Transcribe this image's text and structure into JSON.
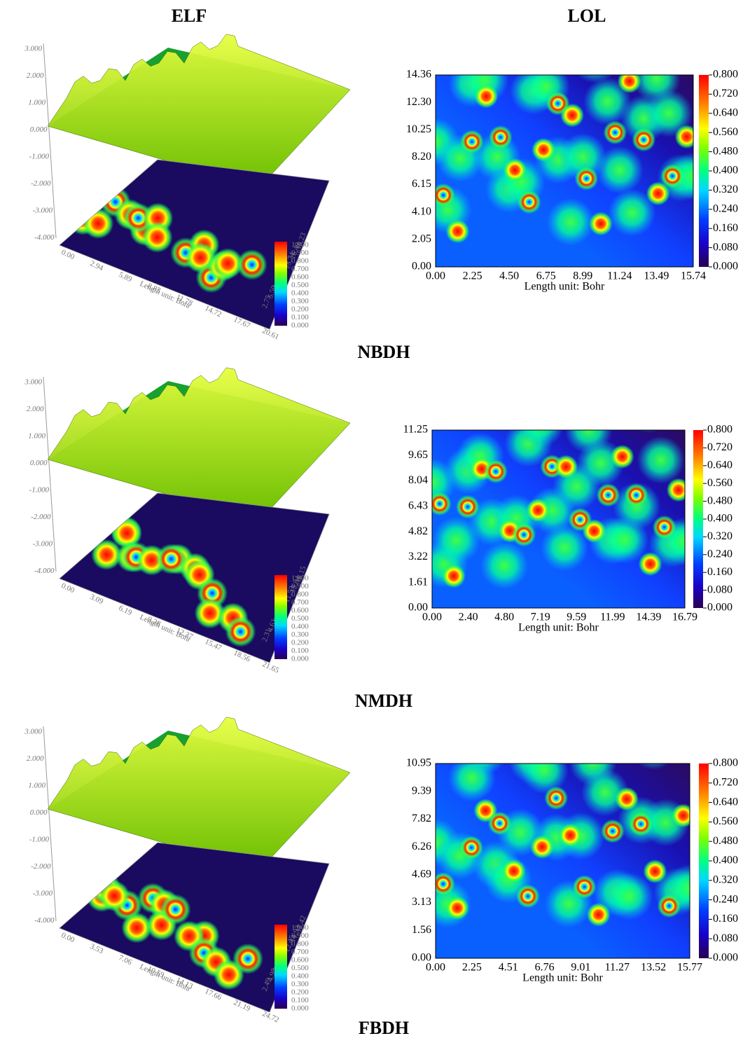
{
  "columns": {
    "elf": "ELF",
    "lol": "LOL"
  },
  "panels": [
    {
      "molecule": "NBDH",
      "elf": {
        "z_ticks": [
          "3.000",
          "2.000",
          "1.000",
          "0.000",
          "-1.000",
          "-2.000",
          "-3.000",
          "-4.000"
        ],
        "x_ticks": [
          "0.00",
          "2.94",
          "5.89",
          "8.83",
          "11.78",
          "14.72",
          "17.67",
          "20.61"
        ],
        "y_ticks": [
          "2.75",
          "5.50",
          "8.24",
          "10.99",
          "13.74",
          "16.49",
          "19.23"
        ],
        "axis_label": "Length unit: Bohr",
        "colorbar_ticks": [
          "1.000",
          "0.900",
          "0.800",
          "0.700",
          "0.600",
          "0.500",
          "0.400",
          "0.300",
          "0.200",
          "0.100",
          "0.000"
        ]
      },
      "lol": {
        "y_ticks": [
          "14.36",
          "12.30",
          "10.25",
          "8.20",
          "6.15",
          "4.10",
          "2.05",
          "0.00"
        ],
        "x_ticks": [
          "0.00",
          "2.25",
          "4.50",
          "6.75",
          "8.99",
          "11.24",
          "13.49",
          "15.74"
        ],
        "axis_label": "Length unit: Bohr",
        "colorbar_ticks": [
          "0.800",
          "0.720",
          "0.640",
          "0.560",
          "0.480",
          "0.400",
          "0.320",
          "0.240",
          "0.160",
          "0.080",
          "0.000"
        ]
      }
    },
    {
      "molecule": "NMDH",
      "elf": {
        "z_ticks": [
          "3.000",
          "2.000",
          "1.000",
          "0.000",
          "-1.000",
          "-2.000",
          "-3.000",
          "-4.000"
        ],
        "x_ticks": [
          "0.00",
          "3.09",
          "6.19",
          "9.28",
          "12.37",
          "15.47",
          "18.56",
          "21.65"
        ],
        "y_ticks": [
          "2.31",
          "4.61",
          "6.92",
          "9.23",
          "11.53",
          "13.84",
          "16.15"
        ],
        "axis_label": "Length unit: Bohr",
        "colorbar_ticks": [
          "1.000",
          "0.900",
          "0.800",
          "0.700",
          "0.600",
          "0.500",
          "0.400",
          "0.300",
          "0.200",
          "0.100",
          "0.000"
        ]
      },
      "lol": {
        "y_ticks": [
          "11.25",
          "9.65",
          "8.04",
          "6.43",
          "4.82",
          "3.22",
          "1.61",
          "0.00"
        ],
        "x_ticks": [
          "0.00",
          "2.40",
          "4.80",
          "7.19",
          "9.59",
          "11.99",
          "14.39",
          "16.79"
        ],
        "axis_label": "Length unit: Bohr",
        "colorbar_ticks": [
          "0.800",
          "0.720",
          "0.640",
          "0.560",
          "0.480",
          "0.400",
          "0.320",
          "0.240",
          "0.160",
          "0.080",
          "0.000"
        ]
      }
    },
    {
      "molecule": "FBDH",
      "elf": {
        "z_ticks": [
          "3.000",
          "2.000",
          "1.000",
          "0.000",
          "-1.000",
          "-2.000",
          "-3.000",
          "-4.000"
        ],
        "x_ticks": [
          "0.00",
          "3.53",
          "7.06",
          "10.59",
          "14.13",
          "17.66",
          "21.19",
          "24.72"
        ],
        "y_ticks": [
          "2.49",
          "4.98",
          "7.47",
          "9.96",
          "12.45",
          "14.93",
          "17.42"
        ],
        "axis_label": "Length unit: Bohr",
        "colorbar_ticks": [
          "1.000",
          "0.900",
          "0.800",
          "0.700",
          "0.600",
          "0.500",
          "0.400",
          "0.300",
          "0.200",
          "0.100",
          "0.000"
        ]
      },
      "lol": {
        "y_ticks": [
          "10.95",
          "9.39",
          "7.82",
          "6.26",
          "4.69",
          "3.13",
          "1.56",
          "0.00"
        ],
        "x_ticks": [
          "0.00",
          "2.25",
          "4.51",
          "6.76",
          "9.01",
          "11.27",
          "13.52",
          "15.77"
        ],
        "axis_label": "Length unit: Bohr",
        "colorbar_ticks": [
          "0.800",
          "0.720",
          "0.640",
          "0.560",
          "0.480",
          "0.400",
          "0.320",
          "0.240",
          "0.160",
          "0.080",
          "0.000"
        ]
      }
    }
  ]
}
